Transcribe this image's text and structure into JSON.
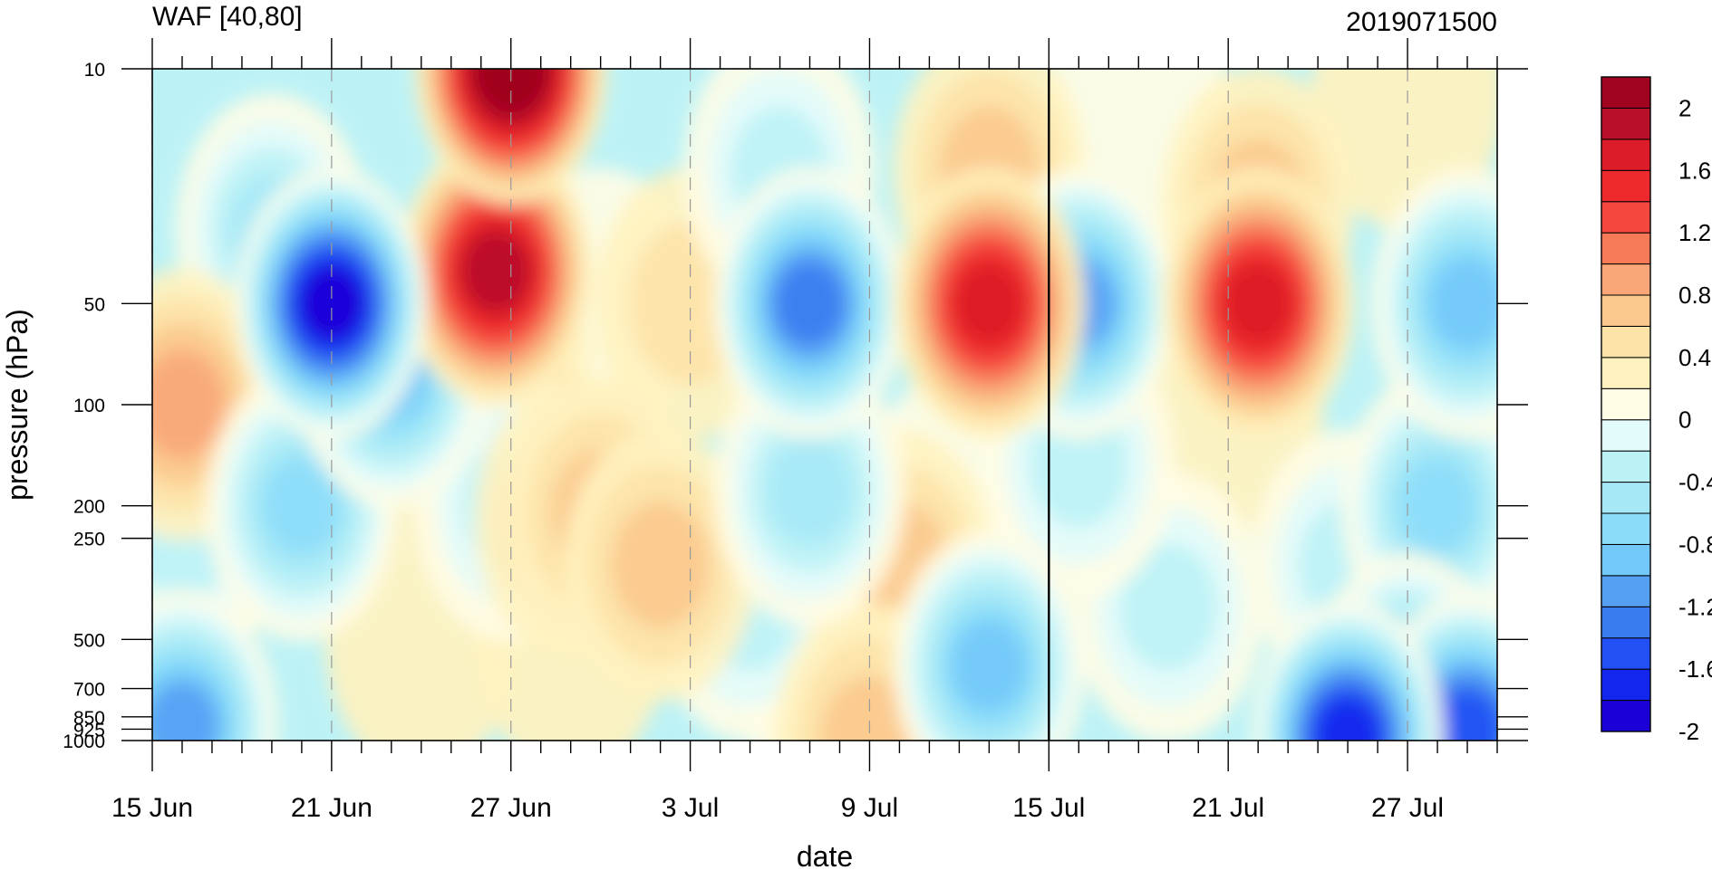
{
  "chart_data": {
    "type": "heatmap",
    "title": "WAF [40,80]",
    "right_title": "2019071500",
    "xlabel": "date",
    "ylabel": "pressure (hPa)",
    "x_ticks": [
      {
        "day": 0,
        "label": "15 Jun"
      },
      {
        "day": 6,
        "label": "21 Jun"
      },
      {
        "day": 12,
        "label": "27 Jun"
      },
      {
        "day": 18,
        "label": "3 Jul"
      },
      {
        "day": 24,
        "label": "9 Jul"
      },
      {
        "day": 30,
        "label": "15 Jul"
      },
      {
        "day": 36,
        "label": "21 Jul"
      },
      {
        "day": 42,
        "label": "27 Jul"
      }
    ],
    "xlim_days": [
      0,
      45
    ],
    "x_start": "15 Jun",
    "y_scale": "log",
    "ylim": [
      1000,
      10
    ],
    "y_ticks": [
      10,
      50,
      100,
      200,
      250,
      500,
      700,
      850,
      925,
      1000
    ],
    "y_tick_labels": [
      "10",
      "50",
      "100",
      "200",
      "250",
      "500",
      "700",
      "850",
      "925",
      "1000"
    ],
    "reference_line_day": 30,
    "colorbar": {
      "labels": [
        "2",
        "1.6",
        "1.2",
        "0.8",
        "0.4",
        "0",
        "-0.4",
        "-0.8",
        "-1.2",
        "-1.6",
        "-2"
      ],
      "levels": [
        -2.2,
        -2.0,
        -1.8,
        -1.6,
        -1.4,
        -1.2,
        -1.0,
        -0.8,
        -0.6,
        -0.4,
        -0.2,
        0,
        0.2,
        0.4,
        0.6,
        0.8,
        1.0,
        1.2,
        1.4,
        1.6,
        1.8,
        2.0,
        2.2
      ],
      "colors": [
        "#1c00d8",
        "#1226ee",
        "#2250f4",
        "#3a7cf0",
        "#56a0f4",
        "#72c8f8",
        "#8cdcf8",
        "#a6e8f6",
        "#bcf2f6",
        "#e2fbfb",
        "#fffde6",
        "#fff2bf",
        "#fde3a8",
        "#fbc98e",
        "#f9a778",
        "#f77a58",
        "#f5473e",
        "#ee2a2e",
        "#dc1c28",
        "#b8102a",
        "#a00420"
      ]
    },
    "features": [
      {
        "day": 12,
        "p": 10,
        "value": 2.2
      },
      {
        "day": 11.5,
        "p": 40,
        "value": 1.7
      },
      {
        "day": 11.5,
        "p": 80,
        "value": 0.5
      },
      {
        "day": 6,
        "p": 50,
        "value": -2.1
      },
      {
        "day": 8,
        "p": 80,
        "value": -1.2
      },
      {
        "day": 4,
        "p": 30,
        "value": -0.8
      },
      {
        "day": 1,
        "p": 100,
        "value": 0.8
      },
      {
        "day": 1,
        "p": 250,
        "value": -0.5
      },
      {
        "day": 1,
        "p": 900,
        "value": -1.3
      },
      {
        "day": 5,
        "p": 200,
        "value": -0.9
      },
      {
        "day": 12,
        "p": 200,
        "value": -0.5
      },
      {
        "day": 14,
        "p": 220,
        "value": 0.5
      },
      {
        "day": 15,
        "p": 210,
        "value": 0.7
      },
      {
        "day": 17,
        "p": 300,
        "value": 0.7
      },
      {
        "day": 14,
        "p": 500,
        "value": 0.1
      },
      {
        "day": 9,
        "p": 500,
        "value": 0.2
      },
      {
        "day": 15,
        "p": 50,
        "value": -0.3
      },
      {
        "day": 18,
        "p": 50,
        "value": 0.4
      },
      {
        "day": 21,
        "p": 20,
        "value": -0.6
      },
      {
        "day": 22,
        "p": 50,
        "value": -1.5
      },
      {
        "day": 22,
        "p": 180,
        "value": -0.8
      },
      {
        "day": 20,
        "p": 400,
        "value": -0.5
      },
      {
        "day": 23,
        "p": 700,
        "value": -0.3
      },
      {
        "day": 28,
        "p": 50,
        "value": 1.6
      },
      {
        "day": 28,
        "p": 20,
        "value": 0.6
      },
      {
        "day": 25,
        "p": 300,
        "value": 0.5
      },
      {
        "day": 27,
        "p": 200,
        "value": -0.1
      },
      {
        "day": 28,
        "p": 600,
        "value": -1.1
      },
      {
        "day": 31,
        "p": 50,
        "value": -1.4
      },
      {
        "day": 31,
        "p": 150,
        "value": -0.6
      },
      {
        "day": 33,
        "p": 15,
        "value": -0.1
      },
      {
        "day": 37,
        "p": 50,
        "value": 1.5
      },
      {
        "day": 37,
        "p": 25,
        "value": 0.7
      },
      {
        "day": 36,
        "p": 100,
        "value": 0.2
      },
      {
        "day": 34,
        "p": 400,
        "value": -0.5
      },
      {
        "day": 40,
        "p": 970,
        "value": -2.0
      },
      {
        "day": 44,
        "p": 930,
        "value": -1.8
      },
      {
        "day": 42,
        "p": 700,
        "value": -1.2
      },
      {
        "day": 44,
        "p": 50,
        "value": -1.1
      },
      {
        "day": 43,
        "p": 200,
        "value": -0.9
      },
      {
        "day": 40,
        "p": 300,
        "value": -0.7
      },
      {
        "day": 42,
        "p": 12,
        "value": 0.3
      },
      {
        "day": 24,
        "p": 990,
        "value": 0.6
      }
    ]
  }
}
